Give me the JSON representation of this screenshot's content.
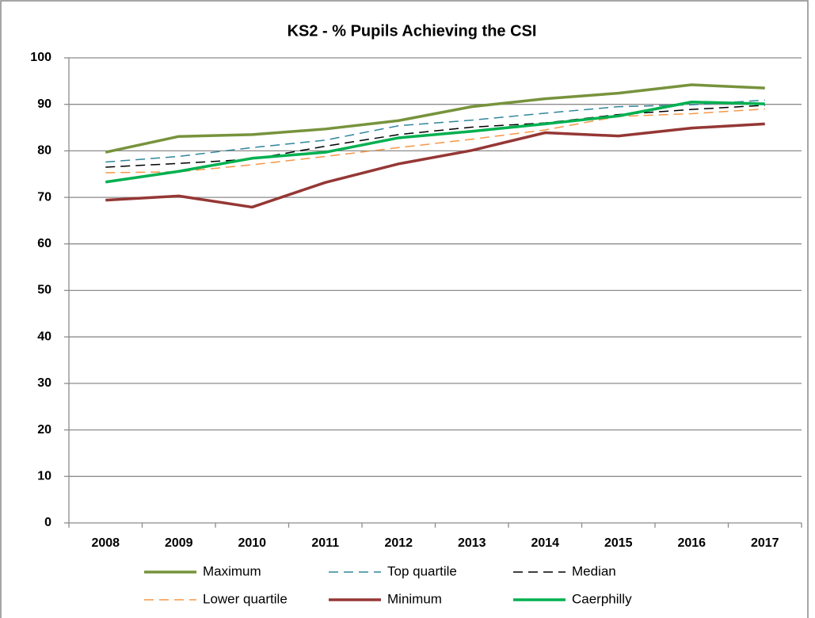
{
  "chart_data": {
    "type": "line",
    "title": "KS2 - % Pupils Achieving the CSI",
    "categories": [
      "2008",
      "2009",
      "2010",
      "2011",
      "2012",
      "2013",
      "2014",
      "2015",
      "2016",
      "2017"
    ],
    "series": [
      {
        "name": "Maximum",
        "color": "#77933c",
        "dashed": false,
        "values": [
          79.7,
          83.1,
          83.5,
          84.7,
          86.5,
          89.5,
          91.2,
          92.4,
          94.2,
          93.5
        ]
      },
      {
        "name": "Top quartile",
        "color": "#31859c",
        "dashed": true,
        "values": [
          77.6,
          78.8,
          80.7,
          82.3,
          85.4,
          86.6,
          88.1,
          89.5,
          89.9,
          90.9
        ]
      },
      {
        "name": "Median",
        "color": "#000000",
        "dashed": true,
        "values": [
          76.5,
          77.3,
          78.2,
          81.0,
          83.5,
          85.1,
          86.0,
          87.8,
          88.9,
          89.8
        ]
      },
      {
        "name": "Lower quartile",
        "color": "#f79646",
        "dashed": true,
        "values": [
          75.3,
          75.5,
          77.0,
          78.8,
          80.7,
          82.5,
          84.5,
          87.4,
          88.0,
          89.0
        ]
      },
      {
        "name": "Minimum",
        "color": "#953735",
        "dashed": false,
        "values": [
          69.4,
          70.3,
          67.9,
          73.2,
          77.2,
          80.1,
          83.9,
          83.2,
          84.9,
          85.8
        ]
      },
      {
        "name": "Caerphilly",
        "color": "#00b050",
        "dashed": false,
        "values": [
          73.3,
          75.6,
          78.4,
          79.7,
          82.8,
          84.2,
          85.8,
          87.5,
          90.5,
          90.1
        ]
      }
    ],
    "ylim": [
      0,
      100
    ],
    "yticks": [
      0,
      10,
      20,
      30,
      40,
      50,
      60,
      70,
      80,
      90,
      100
    ],
    "grid": true,
    "legend": "bottom"
  }
}
